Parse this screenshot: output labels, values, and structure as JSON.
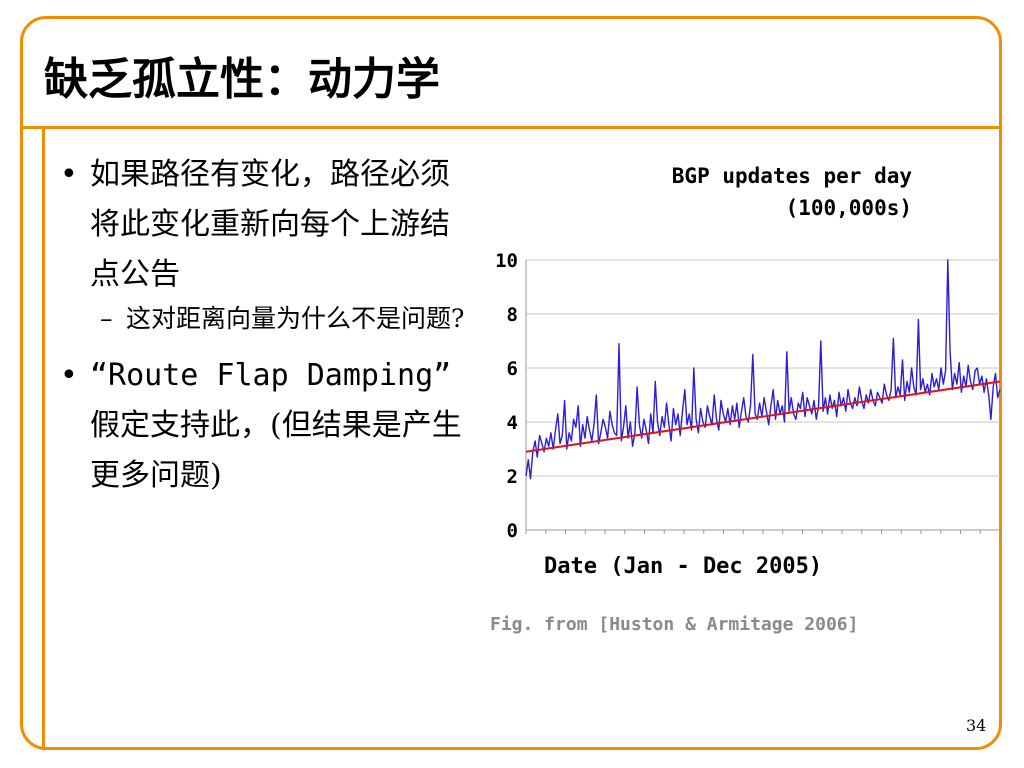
{
  "slide": {
    "title": "缺乏孤立性：动力学",
    "page_number": "34",
    "accent_color": "#f28c00"
  },
  "bullets": [
    {
      "marker": "•",
      "text": "如果路径有变化，路径必须将此变化重新向每个上游结点公告",
      "sub": {
        "marker": "–",
        "text": "这对距离向量为什么不是问题?"
      }
    },
    {
      "marker": "•",
      "text_parts": [
        "“Route Flap Damping”",
        " 假定支持此，(但结果是产生更多问题)"
      ]
    }
  ],
  "caption": "Fig. from [Huston & Armitage 2006]",
  "chart_data": {
    "type": "line",
    "title": "BGP updates per day (100,000s)",
    "title_lines": [
      "BGP updates per day",
      "(100,000s)"
    ],
    "xlabel": "Date (Jan - Dec 2005)",
    "ylabel": "",
    "ylim": [
      0,
      10
    ],
    "yticks": [
      "0",
      "2",
      "4",
      "6",
      "8",
      "10"
    ],
    "x_range": [
      "2005-01-01",
      "2005-12-31"
    ],
    "grid": {
      "horizontal": true,
      "vertical": false
    },
    "series": [
      {
        "kind": "data",
        "color": "#2a1fd6",
        "values": [
          2.0,
          2.6,
          1.9,
          2.9,
          3.3,
          2.7,
          3.5,
          3.2,
          2.9,
          3.4,
          3.1,
          3.6,
          3.0,
          3.7,
          4.3,
          3.2,
          3.5,
          4.8,
          3.0,
          3.6,
          3.3,
          4.1,
          3.8,
          4.6,
          3.1,
          3.9,
          3.4,
          4.2,
          3.7,
          3.3,
          3.9,
          5.0,
          3.2,
          3.6,
          4.1,
          3.8,
          3.4,
          4.4,
          3.9,
          3.6,
          3.5,
          6.9,
          3.3,
          3.8,
          4.6,
          3.4,
          4.0,
          3.1,
          3.6,
          5.3,
          3.9,
          3.4,
          4.1,
          3.7,
          3.2,
          4.3,
          3.6,
          5.5,
          4.0,
          3.5,
          4.2,
          3.8,
          4.7,
          3.9,
          3.3,
          4.5,
          3.9,
          4.3,
          3.5,
          4.4,
          5.2,
          3.9,
          4.3,
          3.7,
          6.0,
          4.1,
          3.6,
          4.5,
          4.0,
          3.8,
          4.6,
          4.2,
          3.9,
          5.0,
          4.1,
          3.7,
          4.8,
          4.3,
          4.0,
          4.5,
          3.9,
          4.6,
          4.1,
          4.7,
          3.8,
          4.4,
          4.9,
          4.2,
          4.0,
          4.6,
          6.5,
          4.3,
          4.1,
          4.7,
          4.2,
          4.9,
          4.4,
          3.9,
          4.6,
          5.2,
          4.1,
          4.8,
          4.3,
          4.6,
          4.0,
          6.6,
          4.4,
          4.9,
          4.3,
          4.1,
          4.7,
          4.5,
          5.1,
          4.2,
          4.9,
          4.6,
          4.3,
          4.8,
          4.1,
          4.6,
          7.0,
          4.4,
          4.9,
          4.3,
          5.0,
          4.5,
          4.8,
          4.2,
          5.1,
          4.6,
          4.9,
          4.4,
          5.2,
          4.7,
          4.5,
          4.9,
          4.6,
          5.3,
          4.8,
          4.5,
          5.0,
          4.7,
          5.2,
          4.8,
          4.6,
          5.1,
          4.9,
          4.7,
          5.4,
          5.0,
          4.8,
          5.2,
          7.1,
          4.9,
          5.3,
          5.0,
          6.3,
          4.8,
          5.5,
          5.1,
          6.0,
          5.3,
          5.0,
          7.8,
          5.2,
          5.6,
          5.1,
          5.4,
          5.0,
          5.8,
          5.3,
          5.6,
          5.2,
          6.0,
          5.4,
          5.9,
          10.0,
          6.6,
          5.2,
          5.8,
          5.4,
          6.2,
          5.1,
          5.7,
          5.3,
          6.1,
          5.5,
          5.2,
          5.9,
          6.0,
          5.4,
          5.7,
          5.1,
          5.6,
          5.0,
          4.1,
          5.3,
          5.8,
          4.9,
          5.2
        ]
      },
      {
        "kind": "trend",
        "color": "#e01414",
        "values": [
          2.9,
          5.5
        ]
      }
    ]
  }
}
